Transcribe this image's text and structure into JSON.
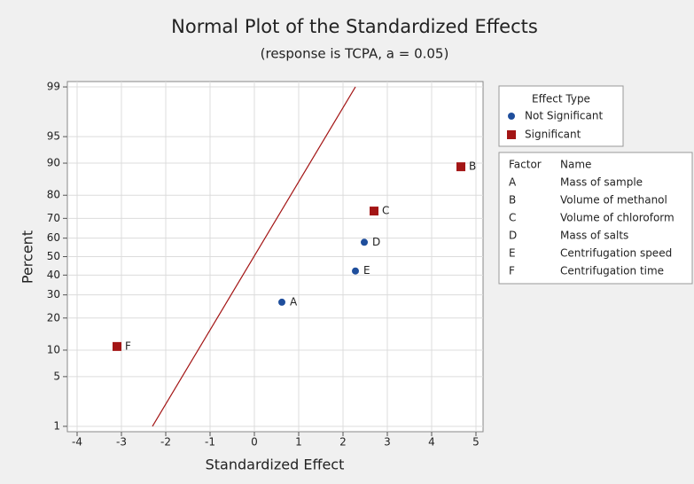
{
  "chart_data": {
    "type": "normal-probability",
    "title": "Normal Plot of the Standardized Effects",
    "subtitle": "(response is TCPA, a = 0.05)",
    "x_label": "Standardized Effect",
    "y_label": "Percent",
    "y_scale": "normal-probability",
    "xlim": [
      -4.22,
      5.16
    ],
    "ylim": [
      0.82,
      99.18
    ],
    "xticks": [
      -4,
      -3,
      -2,
      -1,
      0,
      1,
      2,
      3,
      4,
      5
    ],
    "yticks": [
      1,
      5,
      10,
      20,
      30,
      40,
      50,
      60,
      70,
      80,
      90,
      95,
      99
    ],
    "grid": true,
    "reference_line": {
      "color": "#a31515",
      "x": [
        -2.3,
        2.28
      ],
      "y": [
        1,
        99
      ]
    },
    "legend_title": "Effect Type",
    "series": [
      {
        "name": "Not Significant",
        "color": "#1f4e9c",
        "marker": "circle",
        "labels": [
          "A",
          "D",
          "E"
        ],
        "x": [
          0.62,
          2.48,
          2.28
        ],
        "values": [
          26.6,
          57.8,
          42.2
        ]
      },
      {
        "name": "Significant",
        "color": "#a31515",
        "marker": "square",
        "labels": [
          "B",
          "C",
          "F"
        ],
        "x": [
          4.66,
          2.7,
          -3.1
        ],
        "values": [
          89.1,
          73.4,
          10.9
        ]
      }
    ],
    "factor_table": {
      "headers": [
        "Factor",
        "Name"
      ],
      "rows": [
        [
          "A",
          "Mass of sample"
        ],
        [
          "B",
          "Volume of methanol"
        ],
        [
          "C",
          "Volume of chloroform"
        ],
        [
          "D",
          "Mass of salts"
        ],
        [
          "E",
          "Centrifugation speed"
        ],
        [
          "F",
          "Centrifugation time"
        ]
      ]
    }
  }
}
